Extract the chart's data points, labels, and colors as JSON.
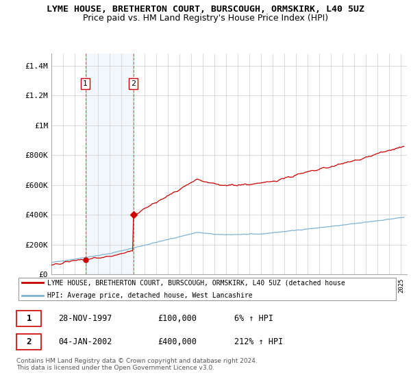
{
  "title": "LYME HOUSE, BRETHERTON COURT, BURSCOUGH, ORMSKIRK, L40 5UZ",
  "subtitle": "Price paid vs. HM Land Registry's House Price Index (HPI)",
  "ylabel_ticks": [
    "£0",
    "£200K",
    "£400K",
    "£600K",
    "£800K",
    "£1M",
    "£1.2M",
    "£1.4M"
  ],
  "ytick_values": [
    0,
    200000,
    400000,
    600000,
    800000,
    1000000,
    1200000,
    1400000
  ],
  "ylim": [
    0,
    1480000
  ],
  "xlim_start": 1995.0,
  "xlim_end": 2025.5,
  "sale1_date": 1997.91,
  "sale1_price": 100000,
  "sale2_date": 2002.03,
  "sale2_price": 400000,
  "hpi_color": "#7fb3d3",
  "price_color": "#cc0000",
  "marker_color": "#cc0000",
  "shade_color": "#ddeeff",
  "background_color": "#ffffff",
  "grid_color": "#cccccc",
  "legend_line1": "LYME HOUSE, BRETHERTON COURT, BURSCOUGH, ORMSKIRK, L40 5UZ (detached house",
  "legend_line2": "HPI: Average price, detached house, West Lancashire",
  "table_row1": [
    "1",
    "28-NOV-1997",
    "£100,000",
    "6% ↑ HPI"
  ],
  "table_row2": [
    "2",
    "04-JAN-2002",
    "£400,000",
    "212% ↑ HPI"
  ],
  "footer": "Contains HM Land Registry data © Crown copyright and database right 2024.\nThis data is licensed under the Open Government Licence v3.0.",
  "title_fontsize": 9.5,
  "subtitle_fontsize": 9,
  "tick_fontsize": 8
}
